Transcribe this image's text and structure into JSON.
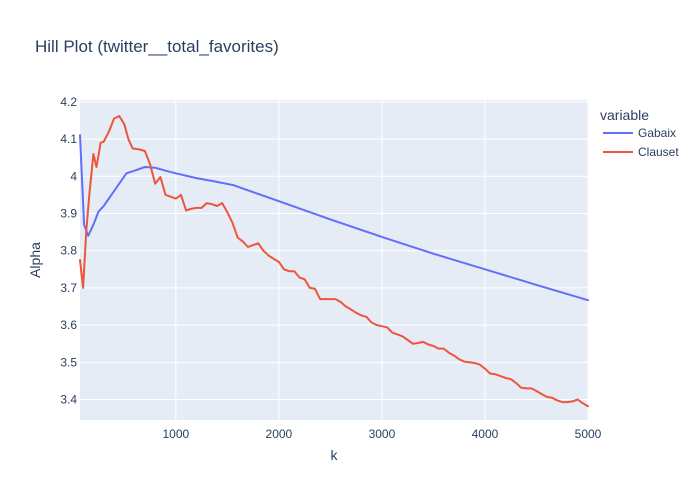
{
  "chart_data": {
    "type": "line",
    "title": "Hill Plot (twitter__total_favorites)",
    "xlabel": "k",
    "ylabel": "Alpha",
    "xlim": [
      70,
      5000
    ],
    "ylim": [
      3.345,
      4.205
    ],
    "xticks": [
      1000,
      2000,
      3000,
      4000,
      5000
    ],
    "xtick_labels": [
      "1000",
      "2000",
      "3000",
      "4000",
      "5000"
    ],
    "yticks": [
      3.4,
      3.5,
      3.6,
      3.7,
      3.8,
      3.9,
      4.0,
      4.1,
      4.2
    ],
    "ytick_labels": [
      "3.4",
      "3.5",
      "3.6",
      "3.7",
      "3.8",
      "3.9",
      "4",
      "4.1",
      "4.2"
    ],
    "grid": true,
    "legend": {
      "title": "variable",
      "position": "right"
    },
    "series": [
      {
        "name": "Gabaix",
        "color": "#636efa",
        "x": [
          70,
          110,
          150,
          200,
          250,
          300,
          400,
          520,
          600,
          700,
          800,
          900,
          1000,
          1200,
          1400,
          1560,
          2000,
          2500,
          3000,
          3500,
          4000,
          4500,
          5000
        ],
        "y": [
          4.11,
          3.87,
          3.84,
          3.87,
          3.905,
          3.92,
          3.96,
          4.008,
          4.015,
          4.025,
          4.023,
          4.015,
          4.008,
          3.995,
          3.985,
          3.976,
          3.933,
          3.884,
          3.837,
          3.792,
          3.75,
          3.708,
          3.667
        ]
      },
      {
        "name": "Clauset",
        "color": "#ef553b",
        "x": [
          70,
          100,
          130,
          160,
          200,
          230,
          270,
          300,
          350,
          400,
          450,
          500,
          540,
          580,
          650,
          700,
          750,
          800,
          850,
          900,
          950,
          1000,
          1050,
          1100,
          1150,
          1200,
          1250,
          1300,
          1350,
          1400,
          1450,
          1500,
          1550,
          1600,
          1650,
          1700,
          1750,
          1800,
          1850,
          1900,
          1950,
          2000,
          2050,
          2100,
          2150,
          2200,
          2250,
          2300,
          2350,
          2400,
          2450,
          2500,
          2550,
          2600,
          2650,
          2700,
          2750,
          2800,
          2850,
          2900,
          2950,
          3000,
          3050,
          3100,
          3150,
          3200,
          3250,
          3300,
          3350,
          3400,
          3450,
          3500,
          3550,
          3600,
          3650,
          3700,
          3750,
          3800,
          3850,
          3900,
          3950,
          4000,
          4050,
          4100,
          4150,
          4200,
          4250,
          4300,
          4350,
          4400,
          4450,
          4500,
          4550,
          4600,
          4650,
          4700,
          4750,
          4800,
          4850,
          4900,
          4950,
          5000
        ],
        "y": [
          3.775,
          3.7,
          3.85,
          3.95,
          4.06,
          4.025,
          4.09,
          4.093,
          4.12,
          4.155,
          4.162,
          4.14,
          4.1,
          4.075,
          4.072,
          4.068,
          4.032,
          3.98,
          3.998,
          3.95,
          3.945,
          3.94,
          3.95,
          3.908,
          3.913,
          3.915,
          3.915,
          3.928,
          3.925,
          3.92,
          3.928,
          3.903,
          3.875,
          3.835,
          3.825,
          3.81,
          3.815,
          3.82,
          3.8,
          3.787,
          3.778,
          3.77,
          3.75,
          3.745,
          3.745,
          3.728,
          3.723,
          3.7,
          3.698,
          3.67,
          3.67,
          3.67,
          3.67,
          3.662,
          3.65,
          3.642,
          3.633,
          3.626,
          3.622,
          3.607,
          3.6,
          3.597,
          3.594,
          3.58,
          3.575,
          3.57,
          3.56,
          3.55,
          3.552,
          3.555,
          3.548,
          3.544,
          3.537,
          3.537,
          3.526,
          3.518,
          3.508,
          3.502,
          3.5,
          3.498,
          3.494,
          3.483,
          3.47,
          3.468,
          3.463,
          3.458,
          3.455,
          3.445,
          3.432,
          3.43,
          3.43,
          3.423,
          3.415,
          3.407,
          3.405,
          3.398,
          3.393,
          3.393,
          3.395,
          3.4,
          3.39,
          3.382
        ]
      }
    ]
  }
}
